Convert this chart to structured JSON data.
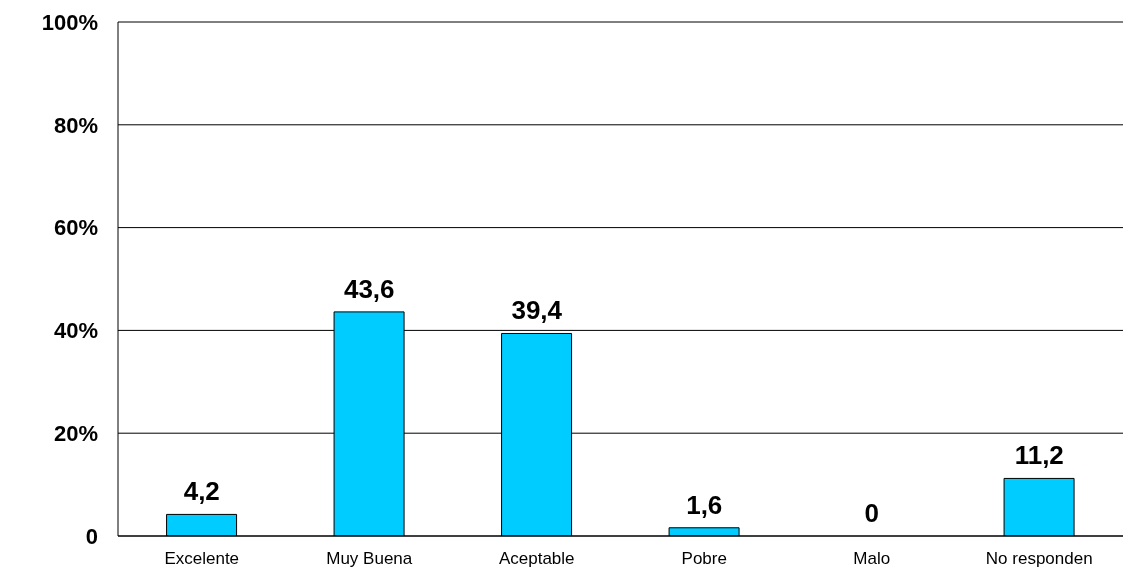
{
  "chart_data": {
    "type": "bar",
    "categories": [
      "Excelente",
      "Muy Buena",
      "Aceptable",
      "Pobre",
      "Malo",
      "No responden"
    ],
    "values": [
      4.2,
      43.6,
      39.4,
      1.6,
      0,
      11.2
    ],
    "value_labels": [
      "4,2",
      "43,6",
      "39,4",
      "1,6",
      "0",
      "11,2"
    ],
    "color": "#00ccff",
    "ylim": [
      0,
      100
    ],
    "yticks": [
      0,
      {
        "value": 20,
        "label": "20%"
      },
      {
        "value": 40,
        "label": "40%"
      },
      {
        "value": 60,
        "label": "60%"
      },
      {
        "value": 80,
        "label": "80%"
      },
      {
        "value": 100,
        "label": "100%"
      }
    ],
    "grid": "y"
  }
}
